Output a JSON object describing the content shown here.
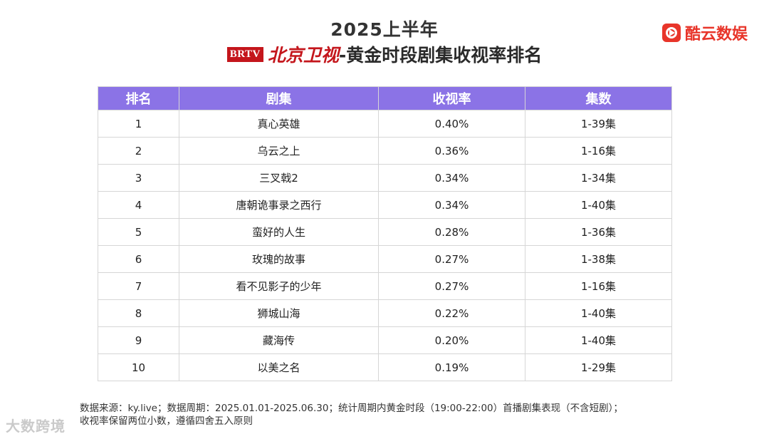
{
  "header": {
    "title_line1": "2025上半年",
    "logo_text": "BRTV",
    "channel": "北京卫视",
    "title_rest": "-黄金时段剧集收视率排名"
  },
  "brand": {
    "name": "酷云数娱",
    "icon": "play-circle-icon",
    "color": "#e8352a"
  },
  "colors": {
    "header_bg": "#8b73e6",
    "channel_red": "#c4161c"
  },
  "chart_data": {
    "type": "table",
    "columns": [
      "排名",
      "剧集",
      "收视率",
      "集数"
    ],
    "rows": [
      [
        "1",
        "真心英雄",
        "0.40%",
        "1-39集"
      ],
      [
        "2",
        "乌云之上",
        "0.36%",
        "1-16集"
      ],
      [
        "3",
        "三叉戟2",
        "0.34%",
        "1-34集"
      ],
      [
        "4",
        "唐朝诡事录之西行",
        "0.34%",
        "1-40集"
      ],
      [
        "5",
        "蛮好的人生",
        "0.28%",
        "1-36集"
      ],
      [
        "6",
        "玫瑰的故事",
        "0.27%",
        "1-38集"
      ],
      [
        "7",
        "看不见影子的少年",
        "0.27%",
        "1-16集"
      ],
      [
        "8",
        "狮城山海",
        "0.22%",
        "1-40集"
      ],
      [
        "9",
        "藏海传",
        "0.20%",
        "1-40集"
      ],
      [
        "10",
        "以美之名",
        "0.19%",
        "1-29集"
      ]
    ]
  },
  "footnote": {
    "line1": "数据来源：ky.live；数据周期：2025.01.01-2025.06.30；统计周期内黄金时段（19:00-22:00）首播剧集表现（不含短剧）；",
    "line2": "收视率保留两位小数，遵循四舍五入原则"
  },
  "watermark": "大数跨境"
}
